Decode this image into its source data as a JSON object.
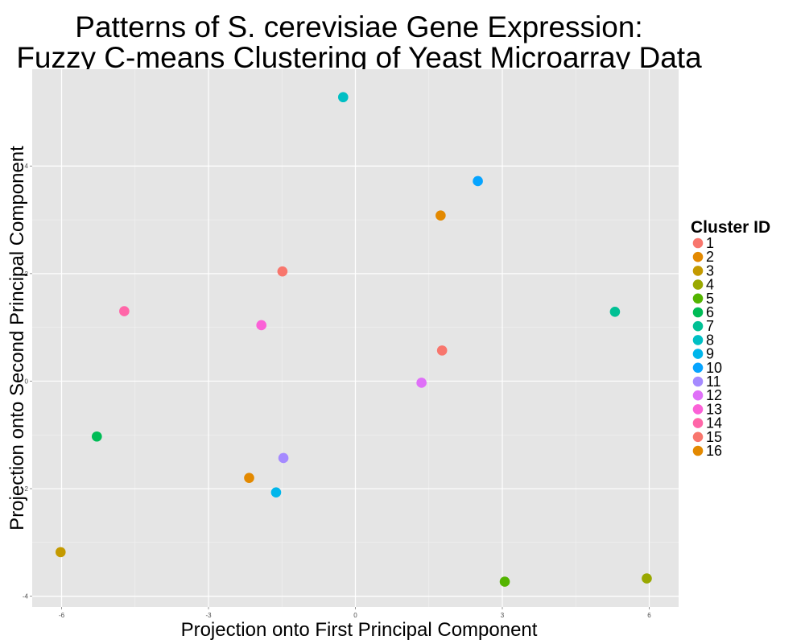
{
  "chart_data": {
    "type": "scatter",
    "title": [
      "Patterns of S. cerevisiae Gene Expression:",
      "Fuzzy C-means Clustering of Yeast Microarray Data"
    ],
    "xlabel": "Projection onto First Principal Component",
    "ylabel": "Projection onto Second Principal Component",
    "xlim": [
      -6.6,
      6.6
    ],
    "ylim": [
      -4.2,
      5.8
    ],
    "xticks": [
      -6,
      -3,
      0,
      3,
      6
    ],
    "xtick_labels": [
      "-6",
      "-3",
      "0",
      "3",
      "6"
    ],
    "yticks": [
      -4,
      -2,
      0,
      2,
      4
    ],
    "ytick_labels": [
      "-4",
      "-2",
      "0",
      "2",
      "4"
    ],
    "grid": true,
    "background": "#e5e5e5",
    "legend": {
      "title": "Cluster ID",
      "placement": "right"
    },
    "points": [
      {
        "cluster": "1",
        "x": 1.77,
        "y": 0.57,
        "color": "#F8766D"
      },
      {
        "cluster": "2",
        "x": 1.74,
        "y": 3.08,
        "color": "#E38900"
      },
      {
        "cluster": "3",
        "x": -6.02,
        "y": -3.18,
        "color": "#C49A00"
      },
      {
        "cluster": "4",
        "x": 5.95,
        "y": -3.67,
        "color": "#99A800"
      },
      {
        "cluster": "5",
        "x": 3.05,
        "y": -3.73,
        "color": "#53B400"
      },
      {
        "cluster": "6",
        "x": -5.28,
        "y": -1.03,
        "color": "#00BC56"
      },
      {
        "cluster": "7",
        "x": 5.3,
        "y": 1.29,
        "color": "#00C094"
      },
      {
        "cluster": "8",
        "x": -0.25,
        "y": 5.28,
        "color": "#00BFC4"
      },
      {
        "cluster": "9",
        "x": -1.62,
        "y": -2.07,
        "color": "#00B6EB"
      },
      {
        "cluster": "10",
        "x": 2.5,
        "y": 3.72,
        "color": "#06A4FF"
      },
      {
        "cluster": "11",
        "x": -1.47,
        "y": -1.43,
        "color": "#A58AFF"
      },
      {
        "cluster": "12",
        "x": 1.35,
        "y": -0.03,
        "color": "#DF70F8"
      },
      {
        "cluster": "13",
        "x": -1.92,
        "y": 1.04,
        "color": "#FB61D7"
      },
      {
        "cluster": "14",
        "x": -4.72,
        "y": 1.3,
        "color": "#FF66A8"
      },
      {
        "cluster": "15",
        "x": -1.49,
        "y": 2.04,
        "color": "#F8766D"
      },
      {
        "cluster": "16",
        "x": -2.17,
        "y": -1.8,
        "color": "#E38900"
      }
    ]
  }
}
